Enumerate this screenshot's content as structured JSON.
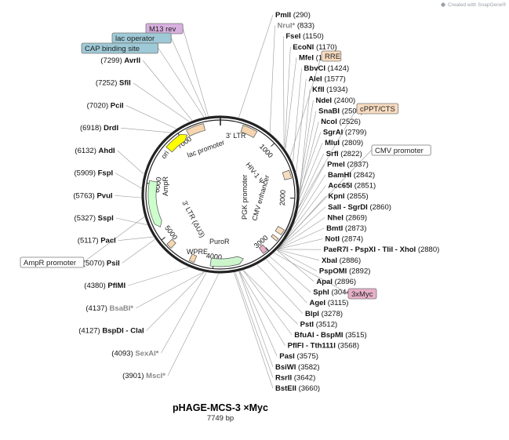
{
  "plasmid": {
    "name": "pHAGE-MCS-3 ×Myc",
    "size_text": "7749 bp",
    "length": 7749
  },
  "credit": "Created with SnapGene®",
  "credit_icon": "snapgene-logo-icon",
  "colors": {
    "backbone": "#222222",
    "leader": "#9a9a9a",
    "ori": "#ffff00",
    "ampr": "#ccffcc",
    "ltr": "#f5d6b0",
    "wpre": "#ffffff",
    "green_feature": "#ccf5cc",
    "orange_feature": "#f8dcc0",
    "purple_feature": "#d8b0e0",
    "pink_feature": "#e8b0c8"
  },
  "ticks": [
    "1000",
    "2000",
    "3000",
    "4000",
    "5000",
    "6000",
    "7000"
  ],
  "enzymes": [
    {
      "name": "PmlI",
      "pos": "(290)",
      "bp": 290
    },
    {
      "name": "NruI*",
      "pos": "(833)",
      "bp": 833,
      "gray": true
    },
    {
      "name": "FseI",
      "pos": "(1150)",
      "bp": 1150
    },
    {
      "name": "EcoNI",
      "pos": "(1170)",
      "bp": 1170
    },
    {
      "name": "MfeI",
      "pos": "(1189)",
      "bp": 1189
    },
    {
      "name": "BbvCI",
      "pos": "(1424)",
      "bp": 1424
    },
    {
      "name": "AleI",
      "pos": "(1577)",
      "bp": 1577
    },
    {
      "name": "KflI",
      "pos": "(1934)",
      "bp": 1934
    },
    {
      "name": "NdeI",
      "pos": "(2400)",
      "bp": 2400
    },
    {
      "name": "SnaBI",
      "pos": "(2506)",
      "bp": 2506
    },
    {
      "name": "NcoI",
      "pos": "(2526)",
      "bp": 2526
    },
    {
      "name": "SgrAI",
      "pos": "(2799)",
      "bp": 2799
    },
    {
      "name": "MluI",
      "pos": "(2809)",
      "bp": 2809
    },
    {
      "name": "SrfI",
      "pos": "(2822)",
      "bp": 2822
    },
    {
      "name": "PmeI",
      "pos": "(2837)",
      "bp": 2837
    },
    {
      "name": "BamHI",
      "pos": "(2842)",
      "bp": 2842
    },
    {
      "name": "Acc65I",
      "pos": "(2851)",
      "bp": 2851
    },
    {
      "name": "KpnI",
      "pos": "(2855)",
      "bp": 2855
    },
    {
      "name": "SalI - SgrDI",
      "pos": "(2860)",
      "bp": 2860
    },
    {
      "name": "NheI",
      "pos": "(2869)",
      "bp": 2869
    },
    {
      "name": "NotI",
      "pos": "(2874)",
      "bp": 2874
    },
    {
      "name": "BmtI",
      "pos": "(2873)",
      "bp": 2873
    },
    {
      "name": "PaeR7I - PspXI - TliI - XhoI",
      "pos": "(2880)",
      "bp": 2880
    },
    {
      "name": "XbaI",
      "pos": "(2886)",
      "bp": 2886
    },
    {
      "name": "PspOMI",
      "pos": "(2892)",
      "bp": 2892
    },
    {
      "name": "ApaI",
      "pos": "(2896)",
      "bp": 2896
    },
    {
      "name": "SphI",
      "pos": "(3044)",
      "bp": 3044
    },
    {
      "name": "AgeI",
      "pos": "(3115)",
      "bp": 3115
    },
    {
      "name": "BlpI",
      "pos": "(3278)",
      "bp": 3278
    },
    {
      "name": "PstI",
      "pos": "(3512)",
      "bp": 3512
    },
    {
      "name": "BfuAI - BspMI",
      "pos": "(3515)",
      "bp": 3515
    },
    {
      "name": "PflFI - Tth111I",
      "pos": "(3568)",
      "bp": 3568
    },
    {
      "name": "PasI",
      "pos": "(3575)",
      "bp": 3575
    },
    {
      "name": "BsiWI",
      "pos": "(3582)",
      "bp": 3582
    },
    {
      "name": "RsrII",
      "pos": "(3642)",
      "bp": 3642
    },
    {
      "name": "BstEII",
      "pos": "(3660)",
      "bp": 3660
    },
    {
      "name": "MscI*",
      "pos": "(3901)",
      "bp": 3901,
      "gray": true
    },
    {
      "name": "SexAI*",
      "pos": "(4093)",
      "bp": 4093,
      "gray": true
    },
    {
      "name": "BspDI - ClaI",
      "pos": "(4127)",
      "bp": 4127
    },
    {
      "name": "BsaBI*",
      "pos": "(4137)",
      "bp": 4137,
      "gray": true
    },
    {
      "name": "PflMI",
      "pos": "(4380)",
      "bp": 4380
    },
    {
      "name": "PsiI",
      "pos": "(5070)",
      "bp": 5070
    },
    {
      "name": "PacI",
      "pos": "(5117)",
      "bp": 5117
    },
    {
      "name": "SspI",
      "pos": "(5327)",
      "bp": 5327
    },
    {
      "name": "PvuI",
      "pos": "(5763)",
      "bp": 5763
    },
    {
      "name": "FspI",
      "pos": "(5909)",
      "bp": 5909
    },
    {
      "name": "AhdI",
      "pos": "(6132)",
      "bp": 6132
    },
    {
      "name": "DrdI",
      "pos": "(6918)",
      "bp": 6918
    },
    {
      "name": "PciI",
      "pos": "(7020)",
      "bp": 7020
    },
    {
      "name": "SfiI",
      "pos": "(7252)",
      "bp": 7252
    },
    {
      "name": "AvrII",
      "pos": "(7299)",
      "bp": 7299
    }
  ],
  "outer_features": [
    {
      "label": "M13 rev",
      "bp": 7560,
      "color": "#d8b0e0"
    },
    {
      "label": "lac operator",
      "bp": 7530,
      "color": "#9ec9d6"
    },
    {
      "label": "CAP binding site",
      "bp": 7490,
      "color": "#9ec9d6"
    },
    {
      "label": "RRE",
      "bp": 1330,
      "color": "#f8dcc0"
    },
    {
      "label": "cPPT/CTS",
      "bp": 2150,
      "color": "#f8dcc0"
    },
    {
      "label": "CMV promoter",
      "bp": 2700,
      "color": "#ffffff"
    },
    {
      "label": "3xMyc",
      "bp": 2960,
      "color": "#e8b0c8"
    },
    {
      "label": "AmpR promoter",
      "bp": 5460,
      "color": "#ffffff"
    }
  ],
  "inner_labels": {
    "ltr_top": "3' LTR",
    "lac_promoter": "lac promoter",
    "ori": "ori",
    "hiv": "HIV-1 Ψ",
    "ampr": "AmpR",
    "pgk": "PGK promoter",
    "cmv_enh": "CMV enhancer",
    "ltr_bottom": "3' LTR (ΔU3)",
    "puro": "PuroR",
    "wpre": "WPRE"
  }
}
